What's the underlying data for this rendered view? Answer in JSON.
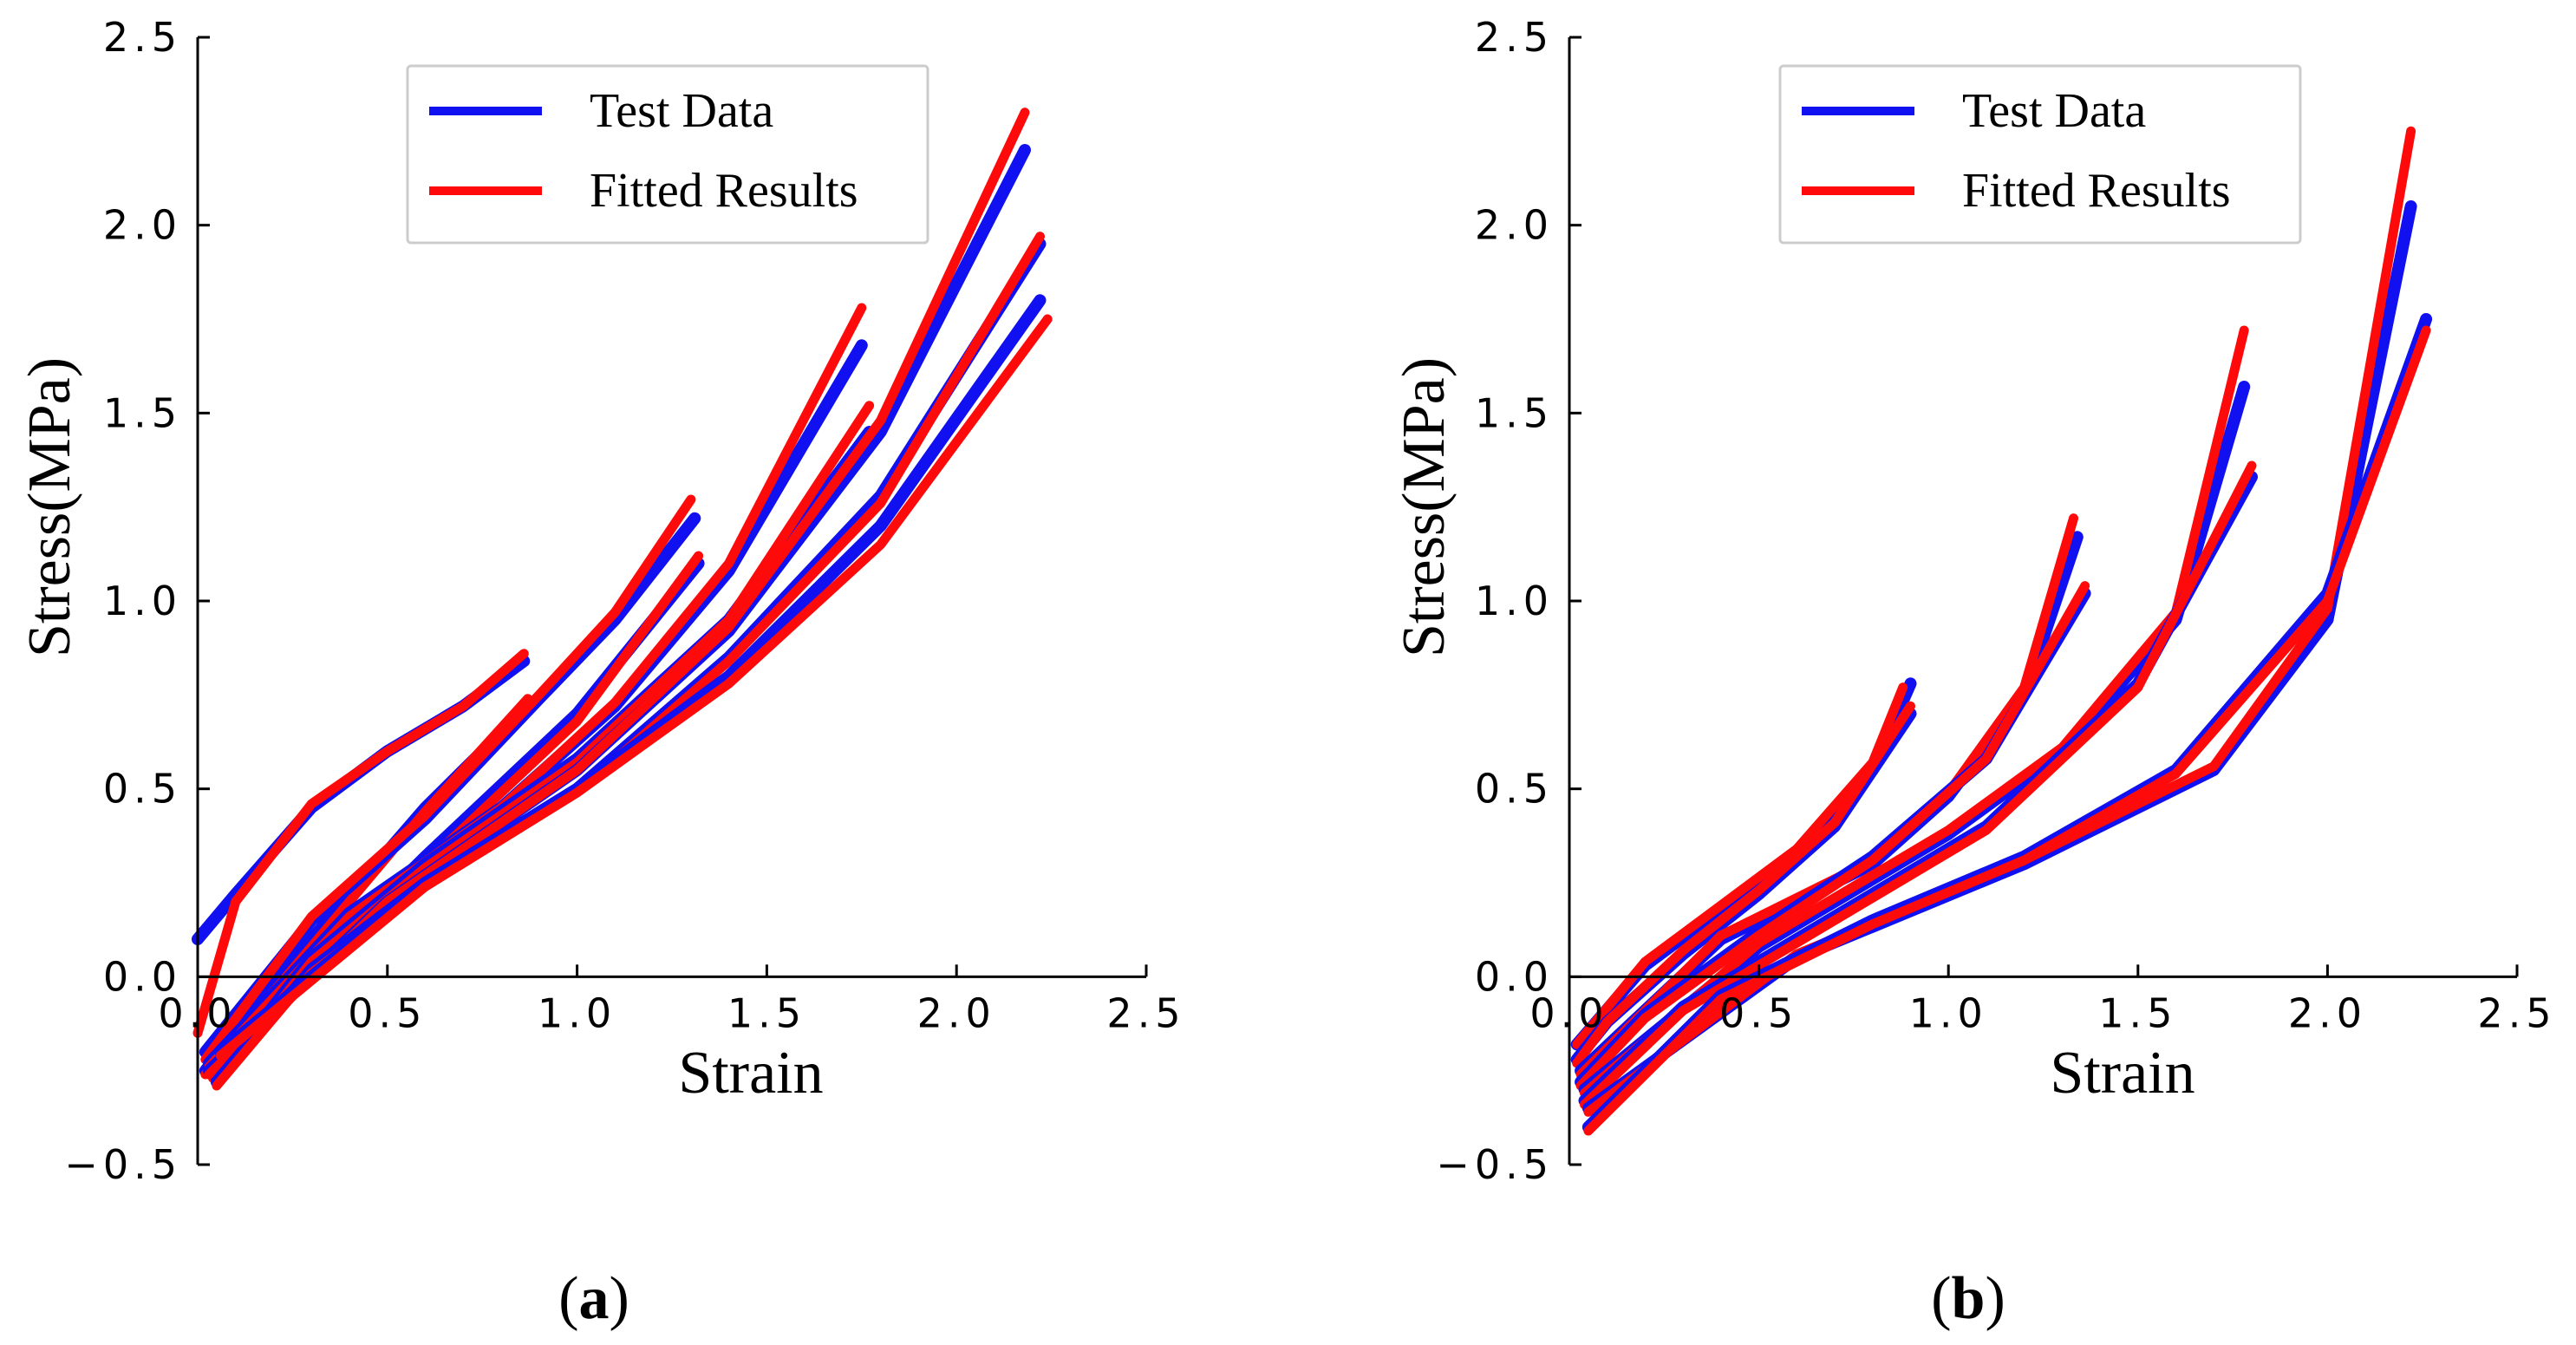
{
  "chart_data": [
    {
      "type": "line",
      "panel": "a",
      "caption_label": "a",
      "xlabel": "Strain",
      "ylabel": "Stress(MPa)",
      "xlim": [
        0.0,
        2.5
      ],
      "ylim": [
        -0.5,
        2.5
      ],
      "xticks": [
        "0.0",
        "0.5",
        "1.0",
        "1.5",
        "2.0",
        "2.5"
      ],
      "yticks": [
        "-0.5",
        "0.0",
        "0.5",
        "1.0",
        "1.5",
        "2.0",
        "2.5"
      ],
      "legend": {
        "position": "top-center",
        "entries": [
          {
            "label": "Test Data",
            "color": "#1010f0"
          },
          {
            "label": "Fitted Results",
            "color": "#ff0a0a"
          }
        ]
      },
      "series": [
        {
          "name": "Test Data",
          "color": "#1010f0",
          "group": "loop-0.85",
          "x": [
            0.0,
            0.1,
            0.3,
            0.5,
            0.7,
            0.86
          ],
          "y": [
            0.1,
            0.22,
            0.45,
            0.6,
            0.72,
            0.84
          ]
        },
        {
          "name": "Fitted Results",
          "color": "#ff0a0a",
          "group": "loop-0.85",
          "x": [
            0.0,
            0.1,
            0.3,
            0.5,
            0.7,
            0.86
          ],
          "y": [
            -0.15,
            0.2,
            0.46,
            0.6,
            0.72,
            0.86
          ]
        },
        {
          "name": "Test Data",
          "color": "#1010f0",
          "group": "loop-0.85-unload",
          "x": [
            0.87,
            0.6,
            0.3,
            0.1,
            0.02
          ],
          "y": [
            0.72,
            0.45,
            0.1,
            -0.15,
            -0.25
          ]
        },
        {
          "name": "Fitted Results",
          "color": "#ff0a0a",
          "group": "loop-0.85-unload",
          "x": [
            0.87,
            0.6,
            0.3,
            0.1,
            0.02
          ],
          "y": [
            0.74,
            0.44,
            0.08,
            -0.16,
            -0.26
          ]
        },
        {
          "name": "Test Data",
          "color": "#1010f0",
          "group": "loop-1.3",
          "x": [
            0.02,
            0.3,
            0.6,
            0.9,
            1.1,
            1.31
          ],
          "y": [
            -0.2,
            0.15,
            0.42,
            0.74,
            0.95,
            1.22
          ]
        },
        {
          "name": "Fitted Results",
          "color": "#ff0a0a",
          "group": "loop-1.3",
          "x": [
            0.02,
            0.3,
            0.6,
            0.9,
            1.1,
            1.3
          ],
          "y": [
            -0.22,
            0.16,
            0.43,
            0.75,
            0.97,
            1.27
          ]
        },
        {
          "name": "Test Data",
          "color": "#1010f0",
          "group": "loop-1.3-unload",
          "x": [
            1.32,
            1.0,
            0.6,
            0.3,
            0.04
          ],
          "y": [
            1.1,
            0.7,
            0.32,
            0.02,
            -0.26
          ]
        },
        {
          "name": "Fitted Results",
          "color": "#ff0a0a",
          "group": "loop-1.3-unload",
          "x": [
            1.32,
            1.0,
            0.6,
            0.3,
            0.04
          ],
          "y": [
            1.12,
            0.68,
            0.3,
            0.0,
            -0.27
          ]
        },
        {
          "name": "Test Data",
          "color": "#1010f0",
          "group": "loop-1.75",
          "x": [
            0.03,
            0.4,
            0.8,
            1.1,
            1.4,
            1.75
          ],
          "y": [
            -0.23,
            0.17,
            0.45,
            0.72,
            1.08,
            1.68
          ]
        },
        {
          "name": "Fitted Results",
          "color": "#ff0a0a",
          "group": "loop-1.75",
          "x": [
            0.03,
            0.4,
            0.8,
            1.1,
            1.4,
            1.75
          ],
          "y": [
            -0.24,
            0.16,
            0.45,
            0.73,
            1.1,
            1.78
          ]
        },
        {
          "name": "Test Data",
          "color": "#1010f0",
          "group": "loop-1.75-unload",
          "x": [
            1.77,
            1.4,
            1.0,
            0.6,
            0.3,
            0.05
          ],
          "y": [
            1.45,
            0.95,
            0.58,
            0.3,
            0.05,
            -0.27
          ]
        },
        {
          "name": "Fitted Results",
          "color": "#ff0a0a",
          "group": "loop-1.75-unload",
          "x": [
            1.77,
            1.4,
            1.0,
            0.6,
            0.3,
            0.05
          ],
          "y": [
            1.52,
            0.95,
            0.57,
            0.29,
            0.04,
            -0.28
          ]
        },
        {
          "name": "Test Data",
          "color": "#1010f0",
          "group": "loop-2.2",
          "x": [
            0.03,
            0.5,
            1.0,
            1.4,
            1.8,
            2.18
          ],
          "y": [
            -0.25,
            0.2,
            0.55,
            0.92,
            1.45,
            2.2
          ]
        },
        {
          "name": "Fitted Results",
          "color": "#ff0a0a",
          "group": "loop-2.2",
          "x": [
            0.03,
            0.5,
            1.0,
            1.4,
            1.8,
            2.18
          ],
          "y": [
            -0.26,
            0.2,
            0.55,
            0.93,
            1.48,
            2.3
          ]
        },
        {
          "name": "Test Data",
          "color": "#1010f0",
          "group": "loop-2.2-unload",
          "x": [
            2.22,
            1.8,
            1.4,
            1.0,
            0.6,
            0.3,
            0.05
          ],
          "y": [
            1.95,
            1.28,
            0.85,
            0.5,
            0.25,
            0.02,
            -0.28
          ]
        },
        {
          "name": "Fitted Results",
          "color": "#ff0a0a",
          "group": "loop-2.2-unload",
          "x": [
            2.22,
            1.8,
            1.4,
            1.0,
            0.6,
            0.3,
            0.05
          ],
          "y": [
            1.97,
            1.26,
            0.84,
            0.49,
            0.24,
            0.01,
            -0.29
          ]
        },
        {
          "name": "Test Data",
          "color": "#1010f0",
          "group": "loop-2.2-b",
          "x": [
            0.06,
            0.6,
            1.0,
            1.4,
            1.8,
            2.22
          ],
          "y": [
            -0.2,
            0.25,
            0.5,
            0.8,
            1.2,
            1.8
          ]
        },
        {
          "name": "Fitted Results",
          "color": "#ff0a0a",
          "group": "loop-2.2-b",
          "x": [
            0.06,
            0.6,
            1.0,
            1.4,
            1.8,
            2.24
          ],
          "y": [
            -0.21,
            0.24,
            0.49,
            0.78,
            1.15,
            1.75
          ]
        }
      ]
    },
    {
      "type": "line",
      "panel": "b",
      "caption_label": "b",
      "xlabel": "Strain",
      "ylabel": "Stress(MPa)",
      "xlim": [
        0.0,
        2.5
      ],
      "ylim": [
        -0.5,
        2.5
      ],
      "xticks": [
        "0.0",
        "0.5",
        "1.0",
        "1.5",
        "2.0",
        "2.5"
      ],
      "yticks": [
        "-0.5",
        "0.0",
        "0.5",
        "1.0",
        "1.5",
        "2.0",
        "2.5"
      ],
      "legend": {
        "position": "top-center",
        "entries": [
          {
            "label": "Test Data",
            "color": "#1010f0"
          },
          {
            "label": "Fitted Results",
            "color": "#ff0a0a"
          }
        ]
      },
      "series": [
        {
          "name": "Test Data",
          "color": "#1010f0",
          "group": "loop-0.9",
          "x": [
            0.02,
            0.2,
            0.4,
            0.6,
            0.8,
            0.9
          ],
          "y": [
            -0.18,
            0.03,
            0.18,
            0.33,
            0.55,
            0.78
          ]
        },
        {
          "name": "Fitted Results",
          "color": "#ff0a0a",
          "group": "loop-0.9",
          "x": [
            0.02,
            0.2,
            0.4,
            0.6,
            0.8,
            0.88
          ],
          "y": [
            -0.18,
            0.04,
            0.19,
            0.34,
            0.57,
            0.77
          ]
        },
        {
          "name": "Test Data",
          "color": "#1010f0",
          "group": "loop-0.9-unload",
          "x": [
            0.9,
            0.7,
            0.5,
            0.3,
            0.1,
            0.02
          ],
          "y": [
            0.7,
            0.4,
            0.22,
            0.06,
            -0.12,
            -0.22
          ]
        },
        {
          "name": "Fitted Results",
          "color": "#ff0a0a",
          "group": "loop-0.9-unload",
          "x": [
            0.9,
            0.7,
            0.5,
            0.3,
            0.1,
            0.02
          ],
          "y": [
            0.72,
            0.41,
            0.23,
            0.07,
            -0.12,
            -0.23
          ]
        },
        {
          "name": "Test Data",
          "color": "#1010f0",
          "group": "loop-1.35",
          "x": [
            0.03,
            0.4,
            0.8,
            1.0,
            1.2,
            1.34
          ],
          "y": [
            -0.25,
            0.1,
            0.3,
            0.48,
            0.75,
            1.17
          ]
        },
        {
          "name": "Fitted Results",
          "color": "#ff0a0a",
          "group": "loop-1.35",
          "x": [
            0.03,
            0.4,
            0.8,
            1.0,
            1.2,
            1.33
          ],
          "y": [
            -0.26,
            0.11,
            0.31,
            0.49,
            0.77,
            1.22
          ]
        },
        {
          "name": "Test Data",
          "color": "#1010f0",
          "group": "loop-1.35-unload",
          "x": [
            1.36,
            1.1,
            0.8,
            0.5,
            0.2,
            0.03
          ],
          "y": [
            1.02,
            0.58,
            0.32,
            0.12,
            -0.1,
            -0.28
          ]
        },
        {
          "name": "Fitted Results",
          "color": "#ff0a0a",
          "group": "loop-1.35-unload",
          "x": [
            1.36,
            1.1,
            0.8,
            0.5,
            0.2,
            0.03
          ],
          "y": [
            1.04,
            0.58,
            0.31,
            0.11,
            -0.11,
            -0.29
          ]
        },
        {
          "name": "Test Data",
          "color": "#1010f0",
          "group": "loop-1.8",
          "x": [
            0.04,
            0.5,
            1.0,
            1.3,
            1.6,
            1.78
          ],
          "y": [
            -0.3,
            0.08,
            0.38,
            0.6,
            0.95,
            1.57
          ]
        },
        {
          "name": "Fitted Results",
          "color": "#ff0a0a",
          "group": "loop-1.8",
          "x": [
            0.04,
            0.5,
            1.0,
            1.3,
            1.6,
            1.78
          ],
          "y": [
            -0.31,
            0.09,
            0.39,
            0.61,
            0.97,
            1.72
          ]
        },
        {
          "name": "Test Data",
          "color": "#1010f0",
          "group": "loop-1.8-unload",
          "x": [
            1.8,
            1.5,
            1.1,
            0.7,
            0.3,
            0.04
          ],
          "y": [
            1.33,
            0.78,
            0.4,
            0.16,
            -0.08,
            -0.33
          ]
        },
        {
          "name": "Fitted Results",
          "color": "#ff0a0a",
          "group": "loop-1.8-unload",
          "x": [
            1.8,
            1.5,
            1.1,
            0.7,
            0.3,
            0.04
          ],
          "y": [
            1.36,
            0.77,
            0.39,
            0.15,
            -0.09,
            -0.34
          ]
        },
        {
          "name": "Test Data",
          "color": "#1010f0",
          "group": "loop-2.25",
          "x": [
            0.05,
            0.6,
            1.2,
            1.7,
            2.0,
            2.22
          ],
          "y": [
            -0.35,
            0.05,
            0.3,
            0.55,
            0.95,
            2.05
          ]
        },
        {
          "name": "Fitted Results",
          "color": "#ff0a0a",
          "group": "loop-2.25",
          "x": [
            0.05,
            0.6,
            1.2,
            1.7,
            2.0,
            2.22
          ],
          "y": [
            -0.36,
            0.06,
            0.31,
            0.56,
            0.98,
            2.25
          ]
        },
        {
          "name": "Test Data",
          "color": "#1010f0",
          "group": "loop-2.25-unload",
          "x": [
            2.26,
            2.0,
            1.6,
            1.2,
            0.8,
            0.4,
            0.05
          ],
          "y": [
            1.75,
            1.02,
            0.55,
            0.32,
            0.15,
            -0.05,
            -0.4
          ]
        },
        {
          "name": "Fitted Results",
          "color": "#ff0a0a",
          "group": "loop-2.25-unload",
          "x": [
            2.26,
            2.0,
            1.6,
            1.2,
            0.8,
            0.4,
            0.05
          ],
          "y": [
            1.72,
            1.0,
            0.54,
            0.31,
            0.14,
            -0.06,
            -0.41
          ]
        }
      ]
    }
  ]
}
